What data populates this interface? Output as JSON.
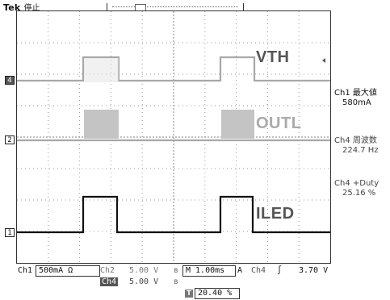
{
  "header": {
    "brand": "Tek",
    "status": "停止"
  },
  "waveforms": {
    "vth_label": "VTH",
    "outl_label": "OUTL",
    "iled_label": "ILED"
  },
  "channel_markers": {
    "ch4": "4",
    "ch2": "2",
    "ch1": "1"
  },
  "trigger_marker": "T",
  "measurements": [
    {
      "label": "Ch1 最大値",
      "value": "580mA"
    },
    {
      "label": "Ch4 周波数",
      "value": "224.7 Hz"
    },
    {
      "label": "Ch4 +Duty",
      "value": "25.16 %"
    }
  ],
  "bottom": {
    "ch1_name": "Ch1",
    "ch1_scale": "500mA Ω",
    "ch2_name": "Ch2",
    "ch2_scale": "5.00 V",
    "ch4_name": "Ch4",
    "ch4_scale": "5.00 V",
    "timebase": "M 1.00ms",
    "trig_mode": "A",
    "trig_src": "Ch4",
    "trig_slope": "∫",
    "trig_level": "3.70 V",
    "trigger_position": "20.40 %"
  },
  "colors": {
    "trace_gray": "#a8a8a8",
    "trace_black": "#111111",
    "grid_dot": "#9a9a9a"
  }
}
